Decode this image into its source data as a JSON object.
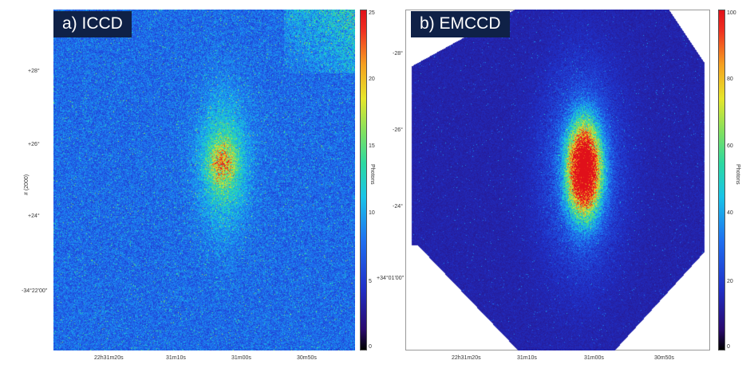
{
  "panel_a": {
    "title": "a) ICCD",
    "ylabel": "# (2000)",
    "y_ticks": [
      "+28°",
      "+26°",
      "+24°",
      "-34°22'00\""
    ],
    "x_ticks": [
      "22h31m20s",
      "31m10s",
      "31m00s",
      "30m50s"
    ],
    "colorbar": {
      "label": "Photons",
      "ticks": [
        "25",
        "20",
        "15",
        "10",
        "5",
        "0"
      ],
      "min": 0,
      "max": 25
    }
  },
  "panel_b": {
    "title": "b) EMCCD",
    "y_ticks": [
      "-28°",
      "-26°",
      "-24°",
      "+34°01'00\""
    ],
    "x_ticks": [
      "22h31m20s",
      "31m10s",
      "31m00s",
      "30m50s"
    ],
    "colorbar": {
      "label": "Photons",
      "ticks": [
        "100",
        "80",
        "60",
        "40",
        "20",
        "0"
      ],
      "min": 0,
      "max": 100
    }
  }
}
